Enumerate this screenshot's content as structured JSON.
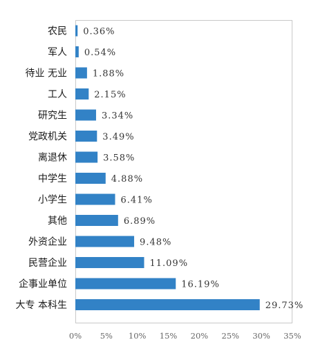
{
  "chart_data": {
    "type": "bar",
    "orientation": "horizontal",
    "title": "",
    "xlabel": "",
    "ylabel": "",
    "categories": [
      "农民",
      "军人",
      "待业 无业",
      "工人",
      "研究生",
      "党政机关",
      "离退休",
      "中学生",
      "小学生",
      "其他",
      "外资企业",
      "民营企业",
      "企事业单位",
      "大专 本科生"
    ],
    "values": [
      0.36,
      0.54,
      1.88,
      2.15,
      3.34,
      3.49,
      3.58,
      4.88,
      6.41,
      6.89,
      9.48,
      11.09,
      16.19,
      29.73
    ],
    "value_labels": [
      "0.36%",
      "0.54%",
      "1.88%",
      "2.15%",
      "3.34%",
      "3.49%",
      "3.58%",
      "4.88%",
      "6.41%",
      "6.89%",
      "9.48%",
      "11.09%",
      "16.19%",
      "29.73%"
    ],
    "xlim": [
      0,
      35
    ],
    "xticks": [
      0,
      5,
      10,
      15,
      20,
      25,
      30,
      35
    ],
    "xtick_labels": [
      "0%",
      "5%",
      "10%",
      "15%",
      "20%",
      "25%",
      "30%",
      "35%"
    ],
    "grid": false,
    "legend": "none",
    "colors": {
      "bar": "#3282c6",
      "frame": "#c8c8c8",
      "plot_bg": "#ffffff"
    }
  }
}
